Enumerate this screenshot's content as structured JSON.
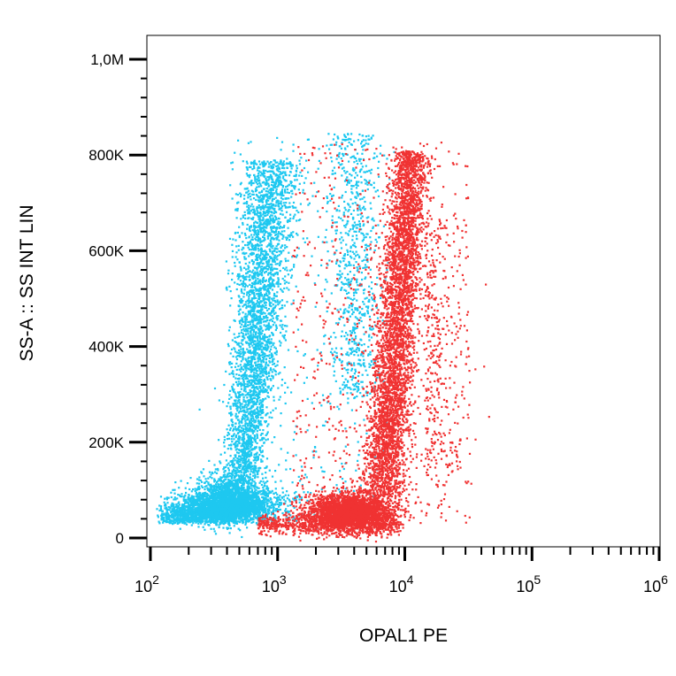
{
  "chart_data": {
    "type": "scatter",
    "title": "",
    "xlabel": "OPAL1 PE",
    "ylabel": "SS-A :: SS INT LIN",
    "x_scale": "log",
    "x_range": [
      70,
      1100000
    ],
    "y_range": [
      -15000,
      1050000
    ],
    "x_tick_labels": [
      {
        "base": "10",
        "exp": "2",
        "value": 100
      },
      {
        "base": "10",
        "exp": "3",
        "value": 1000
      },
      {
        "base": "10",
        "exp": "4",
        "value": 10000
      },
      {
        "base": "10",
        "exp": "5",
        "value": 100000
      },
      {
        "base": "10",
        "exp": "6",
        "value": 1000000
      }
    ],
    "y_tick_labels": [
      {
        "label": "0",
        "value": 0
      },
      {
        "label": "200K",
        "value": 200000
      },
      {
        "label": "400K",
        "value": 400000
      },
      {
        "label": "600K",
        "value": 600000
      },
      {
        "label": "800K",
        "value": 800000
      },
      {
        "label": "1,0M",
        "value": 1000000
      }
    ],
    "grid": false,
    "legend": "none",
    "series": [
      {
        "color": "#1ec8f0",
        "points_estimated": 9000,
        "population": [
          {
            "x_center": 200,
            "y_center": 50000,
            "description": "low-side-scatter cluster"
          },
          {
            "x_center": 700,
            "y_center": 450000,
            "description": "main vertical stream"
          },
          {
            "x_center": 4000,
            "y_center": 700000,
            "description": "sparse high side-scatter group"
          }
        ]
      },
      {
        "color": "#f03232",
        "points_estimated": 10000,
        "population": [
          {
            "x_center": 4000,
            "y_center": 50000,
            "description": "low-side-scatter cluster"
          },
          {
            "x_center": 10000,
            "y_center": 500000,
            "description": "main vertical stream"
          }
        ]
      }
    ]
  }
}
